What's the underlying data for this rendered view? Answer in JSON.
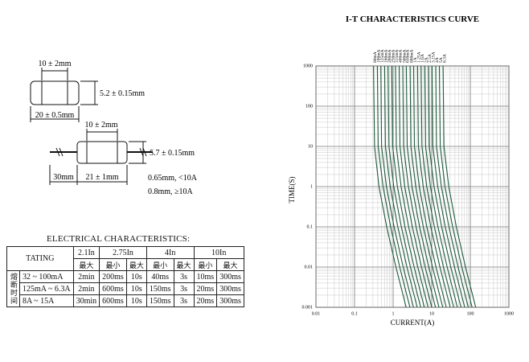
{
  "drawings": {
    "smd": {
      "cap_length": "10 ± 2mm",
      "diameter": "5.2 ± 0.15mm",
      "length": "20 ± 0.5mm"
    },
    "axial": {
      "cap_length": "10 ± 2mm",
      "diameter": "5.7 ± 0.15mm",
      "lead": "30mm",
      "body": "21 ± 1mm",
      "wire_small": "0.65mm, <10A",
      "wire_large": "0.8mm, ≥10A"
    }
  },
  "table": {
    "title": "ELECTRICAL CHARACTERISTICS:",
    "corner": "TATING",
    "groups": [
      "2.1In",
      "2.75In",
      "4In",
      "10In"
    ],
    "subheaders": [
      "最大",
      "最小",
      "最大",
      "最小",
      "最大",
      "最小",
      "最大"
    ],
    "side": "熔断时间",
    "rows": [
      [
        "32 ~ 100mA",
        "2min",
        "200ms",
        "10s",
        "40ms",
        "3s",
        "10ms",
        "300ms"
      ],
      [
        "125mA ~ 6.3A",
        "2min",
        "600ms",
        "10s",
        "150ms",
        "3s",
        "20ms",
        "300ms"
      ],
      [
        "8A ~ 15A",
        "30min",
        "600ms",
        "10s",
        "150ms",
        "3s",
        "20ms",
        "300ms"
      ]
    ]
  },
  "chart_data": {
    "type": "line",
    "title": "I-T CHARACTERISTICS CURVE",
    "x_label": "CURRENT(A)",
    "y_label": "TIME(S)",
    "log_x": true,
    "log_y": true,
    "grid": true,
    "color": "#1f5a3c",
    "xlim": [
      0.01,
      1000
    ],
    "xticks": [
      0.01,
      0.1,
      1,
      10,
      100,
      1000
    ],
    "ylim": [
      0.001,
      1000
    ],
    "yticks": [
      0.001,
      0.01,
      0.1,
      1,
      10,
      100,
      1000
    ],
    "y": [
      1000,
      10,
      1,
      0.1,
      0.01,
      0.001
    ],
    "series": [
      {
        "name": "80mA",
        "x": [
          0.31,
          0.33,
          0.43,
          0.68,
          1.18,
          2.17
        ]
      },
      {
        "name": "100mA",
        "x": [
          0.39,
          0.41,
          0.55,
          0.86,
          1.48,
          2.73
        ]
      },
      {
        "name": "125mA",
        "x": [
          0.48,
          0.5,
          0.67,
          1.06,
          1.82,
          3.36
        ]
      },
      {
        "name": "160mA",
        "x": [
          0.6,
          0.63,
          0.84,
          1.32,
          2.28,
          4.2
        ]
      },
      {
        "name": "200mA",
        "x": [
          0.74,
          0.78,
          1.04,
          1.63,
          2.81,
          5.18
        ]
      },
      {
        "name": "250mA",
        "x": [
          0.92,
          0.97,
          1.29,
          2.02,
          3.5,
          6.44
        ]
      },
      {
        "name": "315mA",
        "x": [
          1.15,
          1.21,
          1.61,
          2.53,
          4.37,
          8.05
        ]
      },
      {
        "name": "400mA",
        "x": [
          1.43,
          1.5,
          2,
          3.15,
          5.43,
          10
        ]
      },
      {
        "name": "500mA",
        "x": [
          1.78,
          1.87,
          2.49,
          3.92,
          6.76,
          12.5
        ]
      },
      {
        "name": "630mA",
        "x": [
          2.2,
          2.31,
          3.08,
          4.84,
          8.36,
          15.4
        ]
      },
      {
        "name": "800mA",
        "x": [
          2.75,
          2.89,
          3.85,
          6.05,
          10.5,
          19.3
        ]
      },
      {
        "name": "1A",
        "x": [
          3.4,
          3.57,
          4.76,
          7.48,
          12.9,
          23.8
        ]
      },
      {
        "name": "1.25A",
        "x": [
          4.3,
          4.52,
          6.02,
          9.46,
          16.3,
          30.1
        ]
      },
      {
        "name": "1.6A",
        "x": [
          5.3,
          5.57,
          7.42,
          11.7,
          20.1,
          37.1
        ]
      },
      {
        "name": "2A",
        "x": [
          6.6,
          6.93,
          9.24,
          14.5,
          25.1,
          46.2
        ]
      },
      {
        "name": "2.5A",
        "x": [
          8.2,
          8.61,
          11.5,
          18,
          31.2,
          57.4
        ]
      },
      {
        "name": "3.15A",
        "x": [
          10.2,
          10.7,
          14.3,
          22.4,
          38.8,
          71.4
        ]
      },
      {
        "name": "4A",
        "x": [
          12.7,
          13.3,
          17.8,
          27.9,
          48.3,
          88.9
        ]
      },
      {
        "name": "5A",
        "x": [
          15.8,
          16.6,
          22.1,
          34.8,
          60,
          111
        ]
      },
      {
        "name": "6.3A",
        "x": [
          19.7,
          20.7,
          27.6,
          43.3,
          74.9,
          138
        ]
      }
    ]
  }
}
